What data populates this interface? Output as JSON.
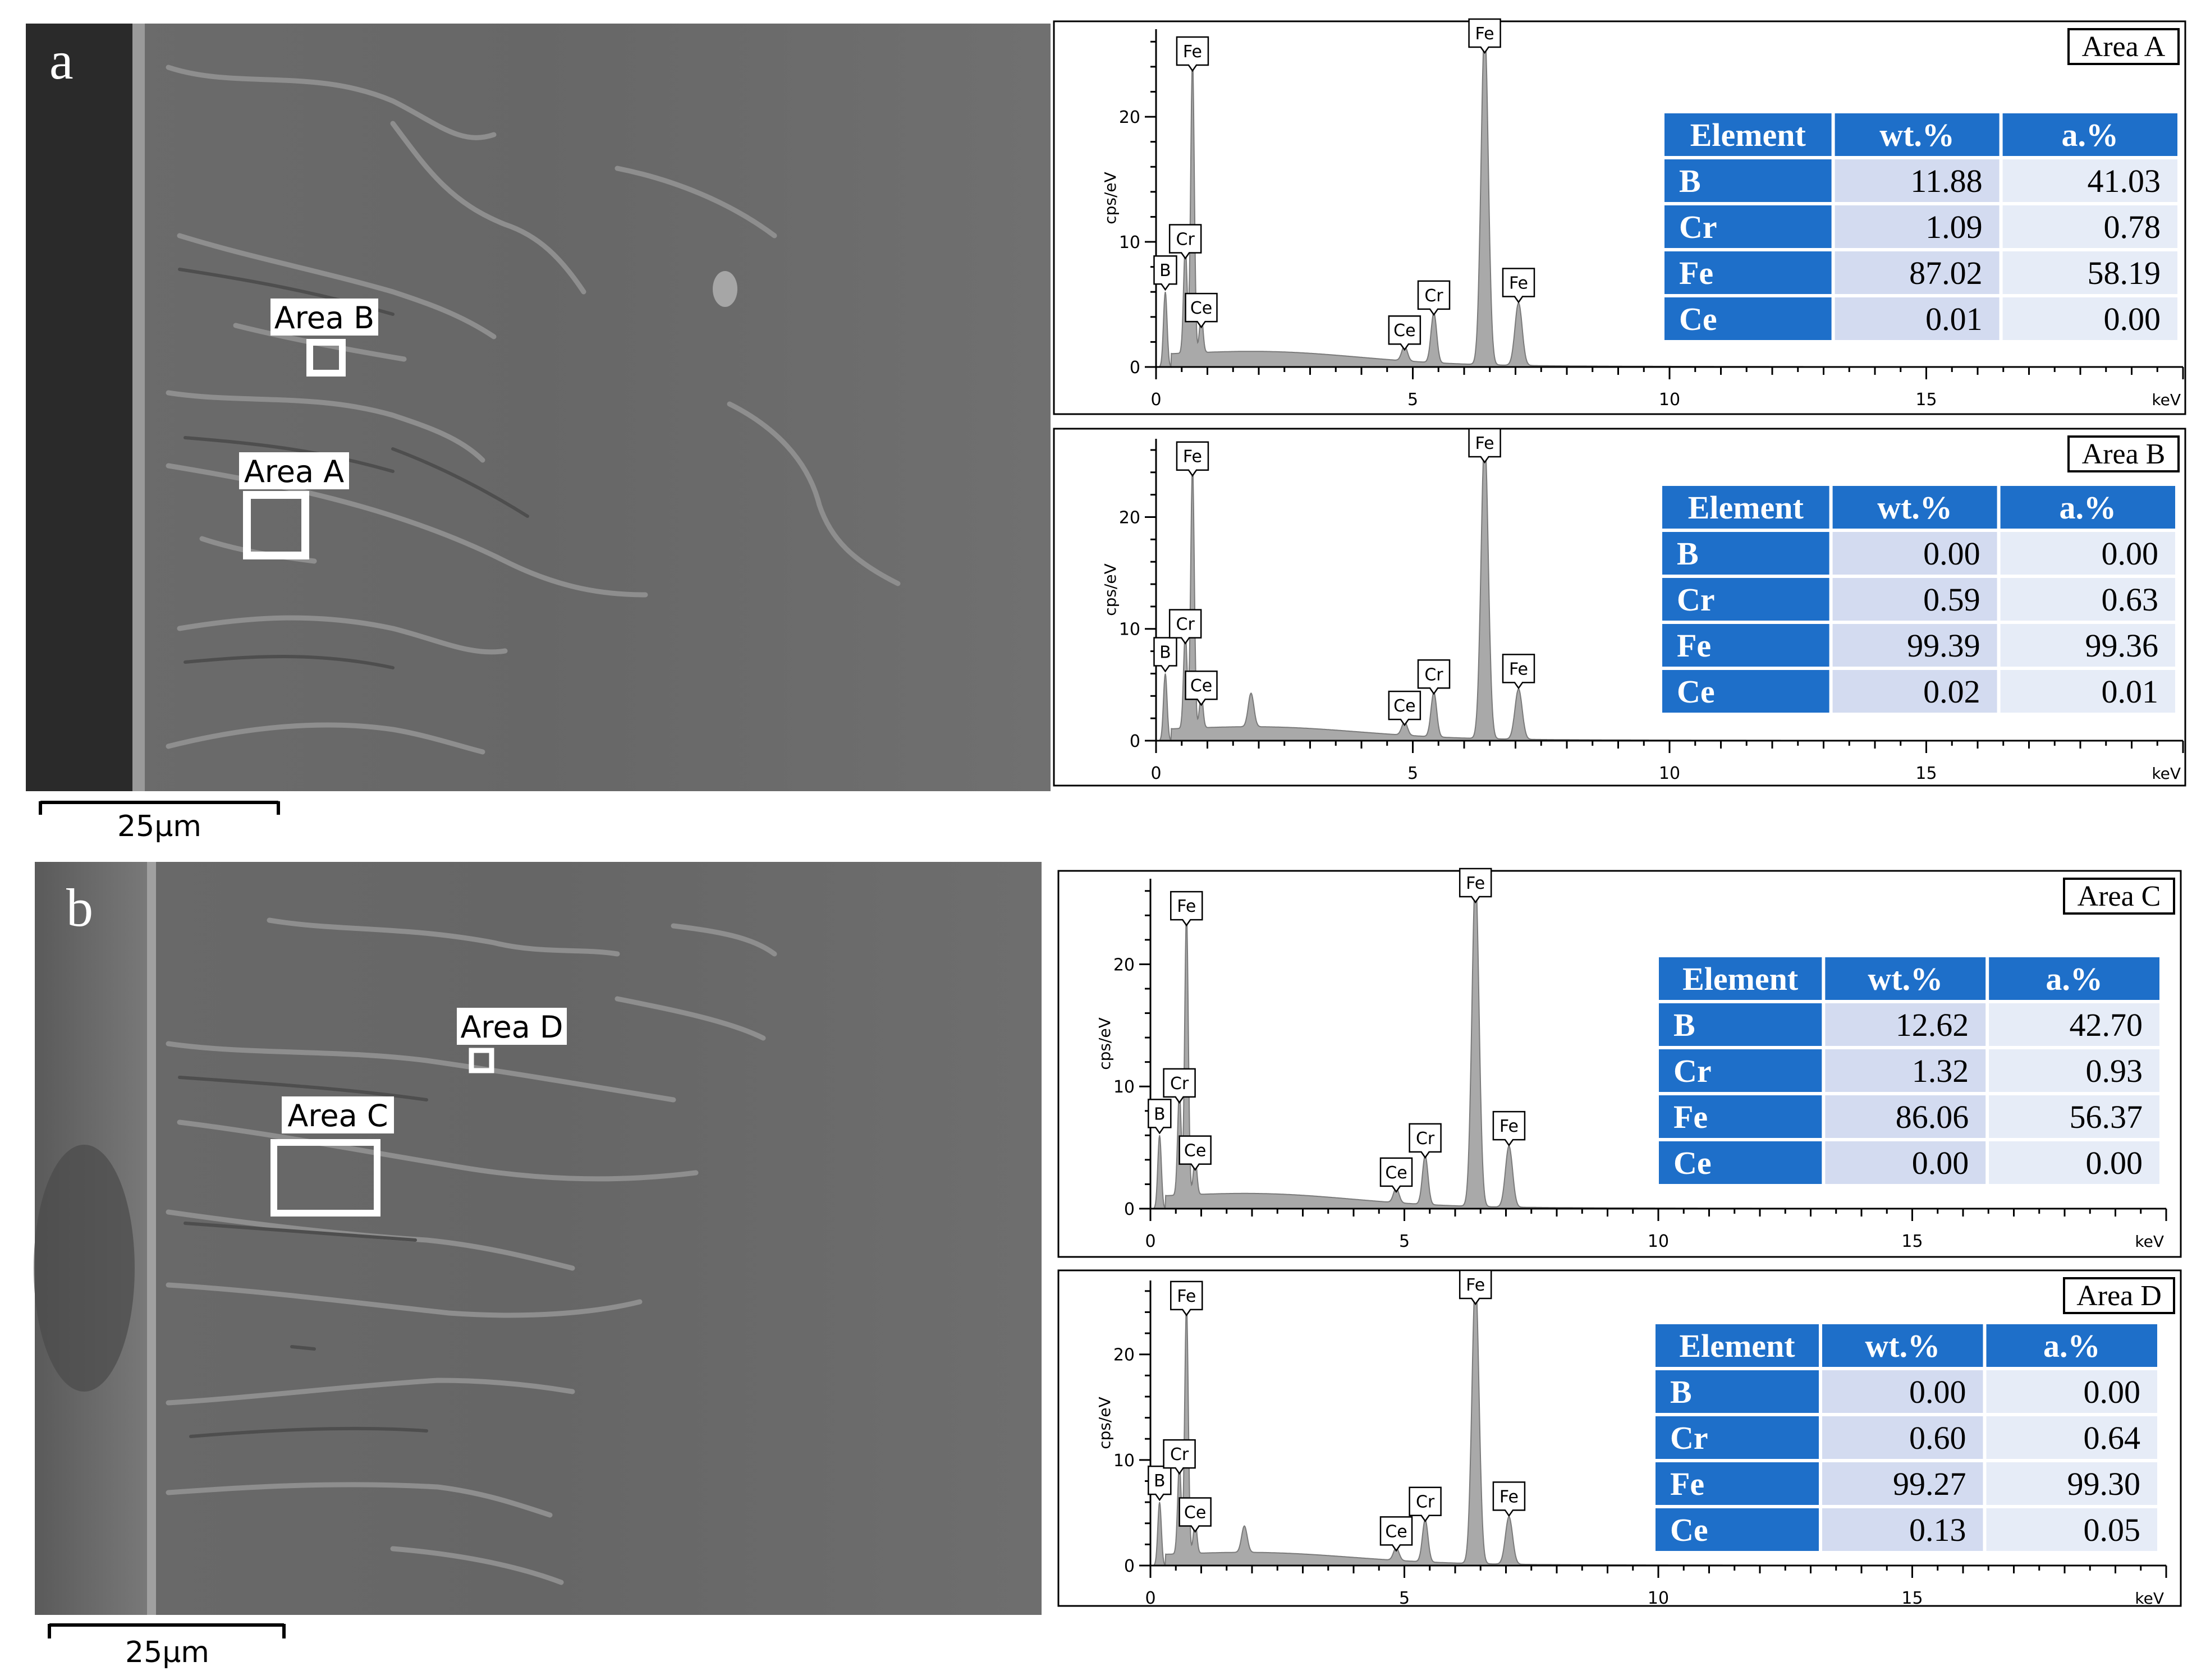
{
  "micrographs": [
    {
      "panel_label": "a",
      "scale_bar": "25μm",
      "areas": [
        "Area B",
        "Area A"
      ]
    },
    {
      "panel_label": "b",
      "scale_bar": "25μm",
      "areas": [
        "Area D",
        "Area C"
      ]
    }
  ],
  "colors": {
    "table_header": "#1e6fc9",
    "table_cell_a": "#d3dbf0",
    "table_cell_b": "#e6ecf7",
    "spectrum_fill": "#a9a9a9",
    "spectrum_stroke": "#7a7a7a",
    "sem_background": "#6b6b6b"
  },
  "chart_data": [
    {
      "type": "area",
      "title": "Area A",
      "xlabel": "keV",
      "ylabel": "cps/eV",
      "xlim": [
        0,
        20
      ],
      "ylim": [
        0,
        27
      ],
      "x_ticks": [
        0,
        5,
        10,
        15
      ],
      "y_ticks": [
        0,
        10,
        20
      ],
      "grid": false,
      "peaks": [
        {
          "label": "B",
          "x": 0.18,
          "y": 6
        },
        {
          "label": "Cr",
          "x": 0.57,
          "y": 8.5
        },
        {
          "label": "Ce",
          "x": 0.88,
          "y": 3
        },
        {
          "label": "Fe",
          "x": 0.71,
          "y": 23.5
        },
        {
          "label": "Ce",
          "x": 4.84,
          "y": 1.2
        },
        {
          "label": "Cr",
          "x": 5.41,
          "y": 4
        },
        {
          "label": "Fe",
          "x": 6.4,
          "y": 27
        },
        {
          "label": "Fe",
          "x": 7.06,
          "y": 5
        },
        {
          "label": "",
          "x": 1.85,
          "y": 0
        }
      ],
      "table": {
        "headers": [
          "Element",
          "wt.%",
          "a.%"
        ],
        "rows": [
          [
            "B",
            "11.88",
            "41.03"
          ],
          [
            "Cr",
            "1.09",
            "0.78"
          ],
          [
            "Fe",
            "87.02",
            "58.19"
          ],
          [
            "Ce",
            "0.01",
            "0.00"
          ]
        ]
      }
    },
    {
      "type": "area",
      "title": "Area B",
      "xlabel": "keV",
      "ylabel": "cps/eV",
      "xlim": [
        0,
        20
      ],
      "ylim": [
        0,
        27
      ],
      "x_ticks": [
        0,
        5,
        10,
        15
      ],
      "y_ticks": [
        0,
        10,
        20
      ],
      "grid": false,
      "peaks": [
        {
          "label": "B",
          "x": 0.18,
          "y": 6
        },
        {
          "label": "Cr",
          "x": 0.57,
          "y": 8.5
        },
        {
          "label": "Ce",
          "x": 0.88,
          "y": 3
        },
        {
          "label": "Fe",
          "x": 0.71,
          "y": 23.5
        },
        {
          "label": "Ce",
          "x": 4.84,
          "y": 1.2
        },
        {
          "label": "Cr",
          "x": 5.41,
          "y": 4
        },
        {
          "label": "Fe",
          "x": 6.4,
          "y": 27
        },
        {
          "label": "Fe",
          "x": 7.06,
          "y": 4.5
        },
        {
          "label": "",
          "x": 1.85,
          "y": 3
        }
      ],
      "table": {
        "headers": [
          "Element",
          "wt.%",
          "a.%"
        ],
        "rows": [
          [
            "B",
            "0.00",
            "0.00"
          ],
          [
            "Cr",
            "0.59",
            "0.63"
          ],
          [
            "Fe",
            "99.39",
            "99.36"
          ],
          [
            "Ce",
            "0.02",
            "0.01"
          ]
        ]
      }
    },
    {
      "type": "area",
      "title": "Area C",
      "xlabel": "keV",
      "ylabel": "cps/eV",
      "xlim": [
        0,
        20
      ],
      "ylim": [
        0,
        27
      ],
      "x_ticks": [
        0,
        5,
        10,
        15
      ],
      "y_ticks": [
        0,
        10,
        20
      ],
      "grid": false,
      "peaks": [
        {
          "label": "B",
          "x": 0.18,
          "y": 6
        },
        {
          "label": "Cr",
          "x": 0.57,
          "y": 8.5
        },
        {
          "label": "Ce",
          "x": 0.88,
          "y": 3
        },
        {
          "label": "Fe",
          "x": 0.71,
          "y": 23
        },
        {
          "label": "Ce",
          "x": 4.84,
          "y": 1.2
        },
        {
          "label": "Cr",
          "x": 5.41,
          "y": 4
        },
        {
          "label": "Fe",
          "x": 6.4,
          "y": 27
        },
        {
          "label": "Fe",
          "x": 7.06,
          "y": 5
        },
        {
          "label": "",
          "x": 1.85,
          "y": 0
        }
      ],
      "table": {
        "headers": [
          "Element",
          "wt.%",
          "a.%"
        ],
        "rows": [
          [
            "B",
            "12.62",
            "42.70"
          ],
          [
            "Cr",
            "1.32",
            "0.93"
          ],
          [
            "Fe",
            "86.06",
            "56.37"
          ],
          [
            "Ce",
            "0.00",
            "0.00"
          ]
        ]
      }
    },
    {
      "type": "area",
      "title": "Area D",
      "xlabel": "keV",
      "ylabel": "cps/eV",
      "xlim": [
        0,
        20
      ],
      "ylim": [
        0,
        27
      ],
      "x_ticks": [
        0,
        5,
        10,
        15
      ],
      "y_ticks": [
        0,
        10,
        20
      ],
      "grid": false,
      "peaks": [
        {
          "label": "B",
          "x": 0.18,
          "y": 6
        },
        {
          "label": "Cr",
          "x": 0.57,
          "y": 8.5
        },
        {
          "label": "Ce",
          "x": 0.88,
          "y": 3
        },
        {
          "label": "Fe",
          "x": 0.71,
          "y": 23.5
        },
        {
          "label": "Ce",
          "x": 4.84,
          "y": 1.2
        },
        {
          "label": "Cr",
          "x": 5.41,
          "y": 4
        },
        {
          "label": "Fe",
          "x": 6.4,
          "y": 27
        },
        {
          "label": "Fe",
          "x": 7.06,
          "y": 4.5
        },
        {
          "label": "",
          "x": 1.85,
          "y": 2.5
        }
      ],
      "table": {
        "headers": [
          "Element",
          "wt.%",
          "a.%"
        ],
        "rows": [
          [
            "B",
            "0.00",
            "0.00"
          ],
          [
            "Cr",
            "0.60",
            "0.64"
          ],
          [
            "Fe",
            "99.27",
            "99.30"
          ],
          [
            "Ce",
            "0.13",
            "0.05"
          ]
        ]
      }
    }
  ]
}
